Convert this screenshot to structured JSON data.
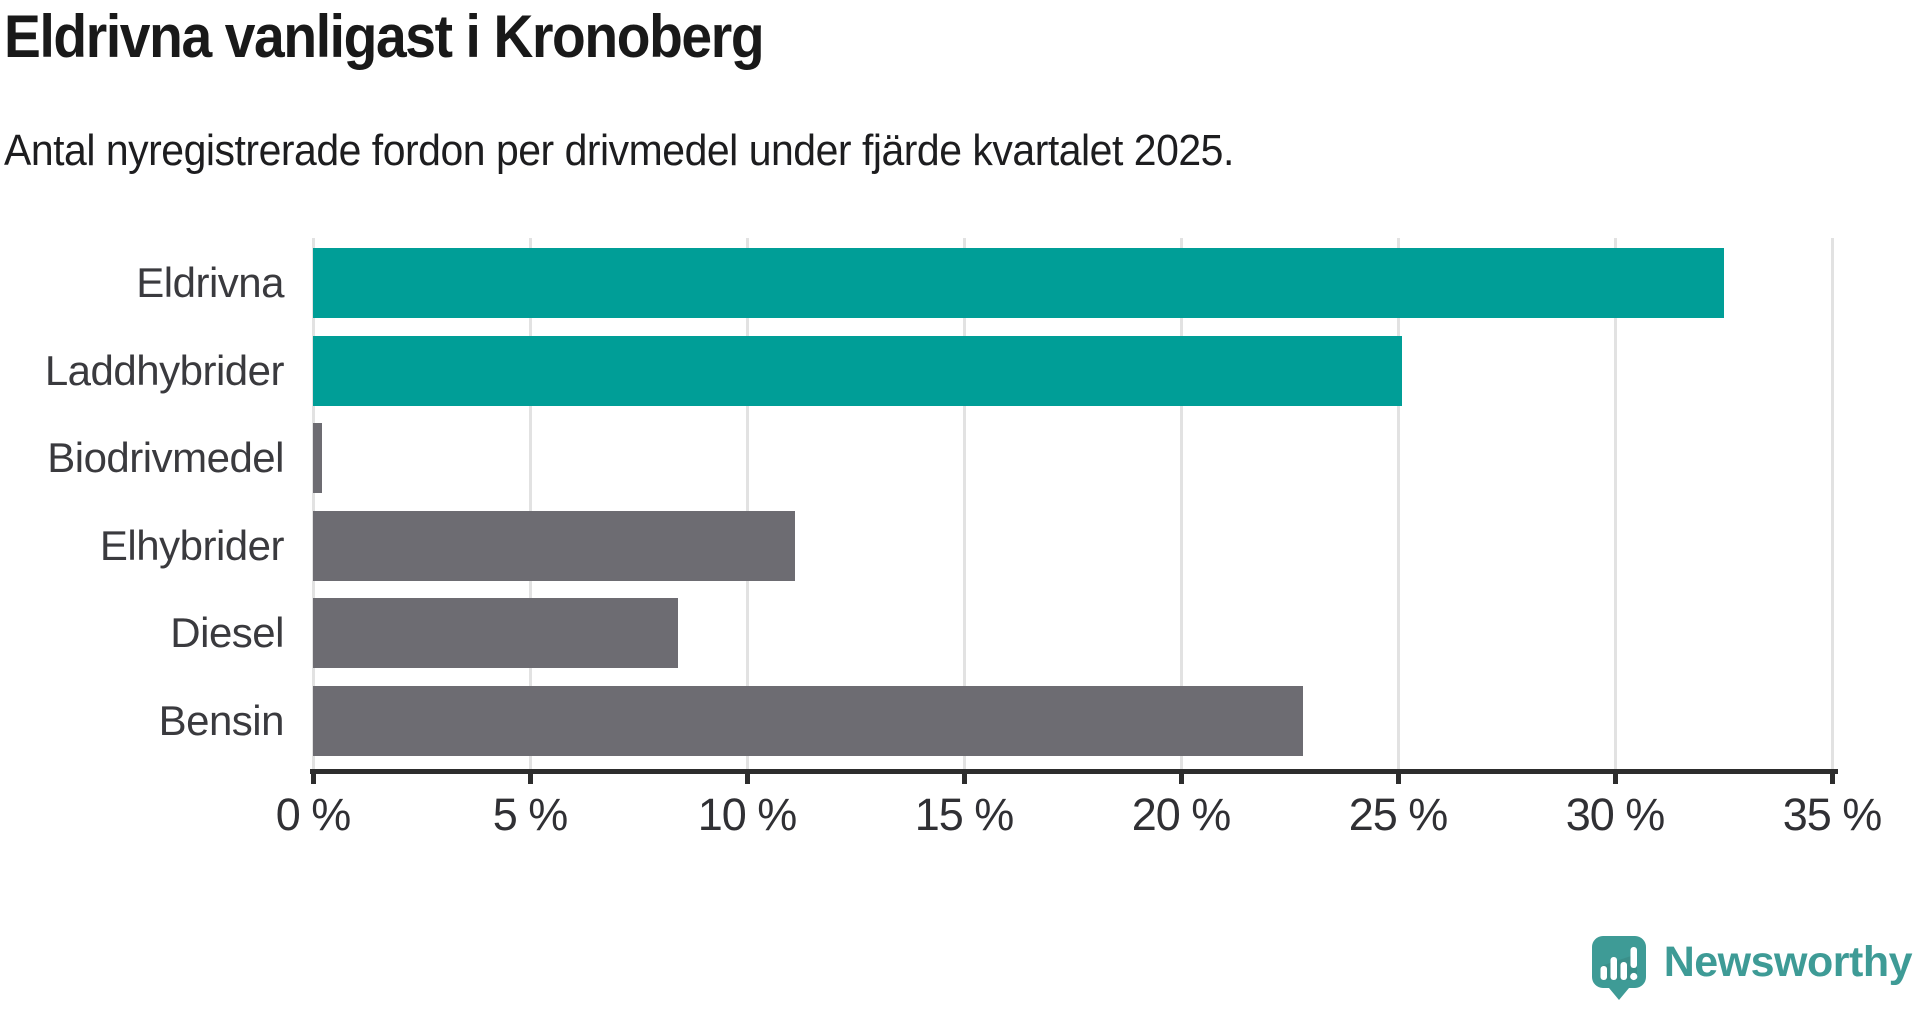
{
  "title": "Eldrivna vanligast i Kronoberg",
  "subtitle": "Antal nyregistrerade fordon per drivmedel under fjärde kvartalet 2025.",
  "colors": {
    "accent_teal": "#009e97",
    "bar_gray": "#6d6c72",
    "gridline": "#e2e2e2",
    "axis": "#2d2d2d",
    "logo_teal": "#3e9b96"
  },
  "chart_data": {
    "type": "bar",
    "orientation": "horizontal",
    "title": "Eldrivna vanligast i Kronoberg",
    "subtitle": "Antal nyregistrerade fordon per drivmedel under fjärde kvartalet 2025.",
    "categories": [
      "Eldrivna",
      "Laddhybrider",
      "Biodrivmedel",
      "Elhybrider",
      "Diesel",
      "Bensin"
    ],
    "values": [
      32.5,
      25.1,
      0.2,
      11.1,
      8.4,
      22.8
    ],
    "unit": "%",
    "bar_colors": [
      "#009e97",
      "#009e97",
      "#6d6c72",
      "#6d6c72",
      "#6d6c72",
      "#6d6c72"
    ],
    "xlim": [
      0,
      35
    ],
    "xticks": [
      0,
      5,
      10,
      15,
      20,
      25,
      30,
      35
    ],
    "xtick_labels": [
      "0 %",
      "5 %",
      "10 %",
      "15 %",
      "20 %",
      "25 %",
      "30 %",
      "35 %"
    ],
    "grid": "vertical-only",
    "legend": "none"
  },
  "logo": {
    "text": "Newsworthy",
    "icon": "newsworthy-speech-bubble-chart-icon"
  }
}
